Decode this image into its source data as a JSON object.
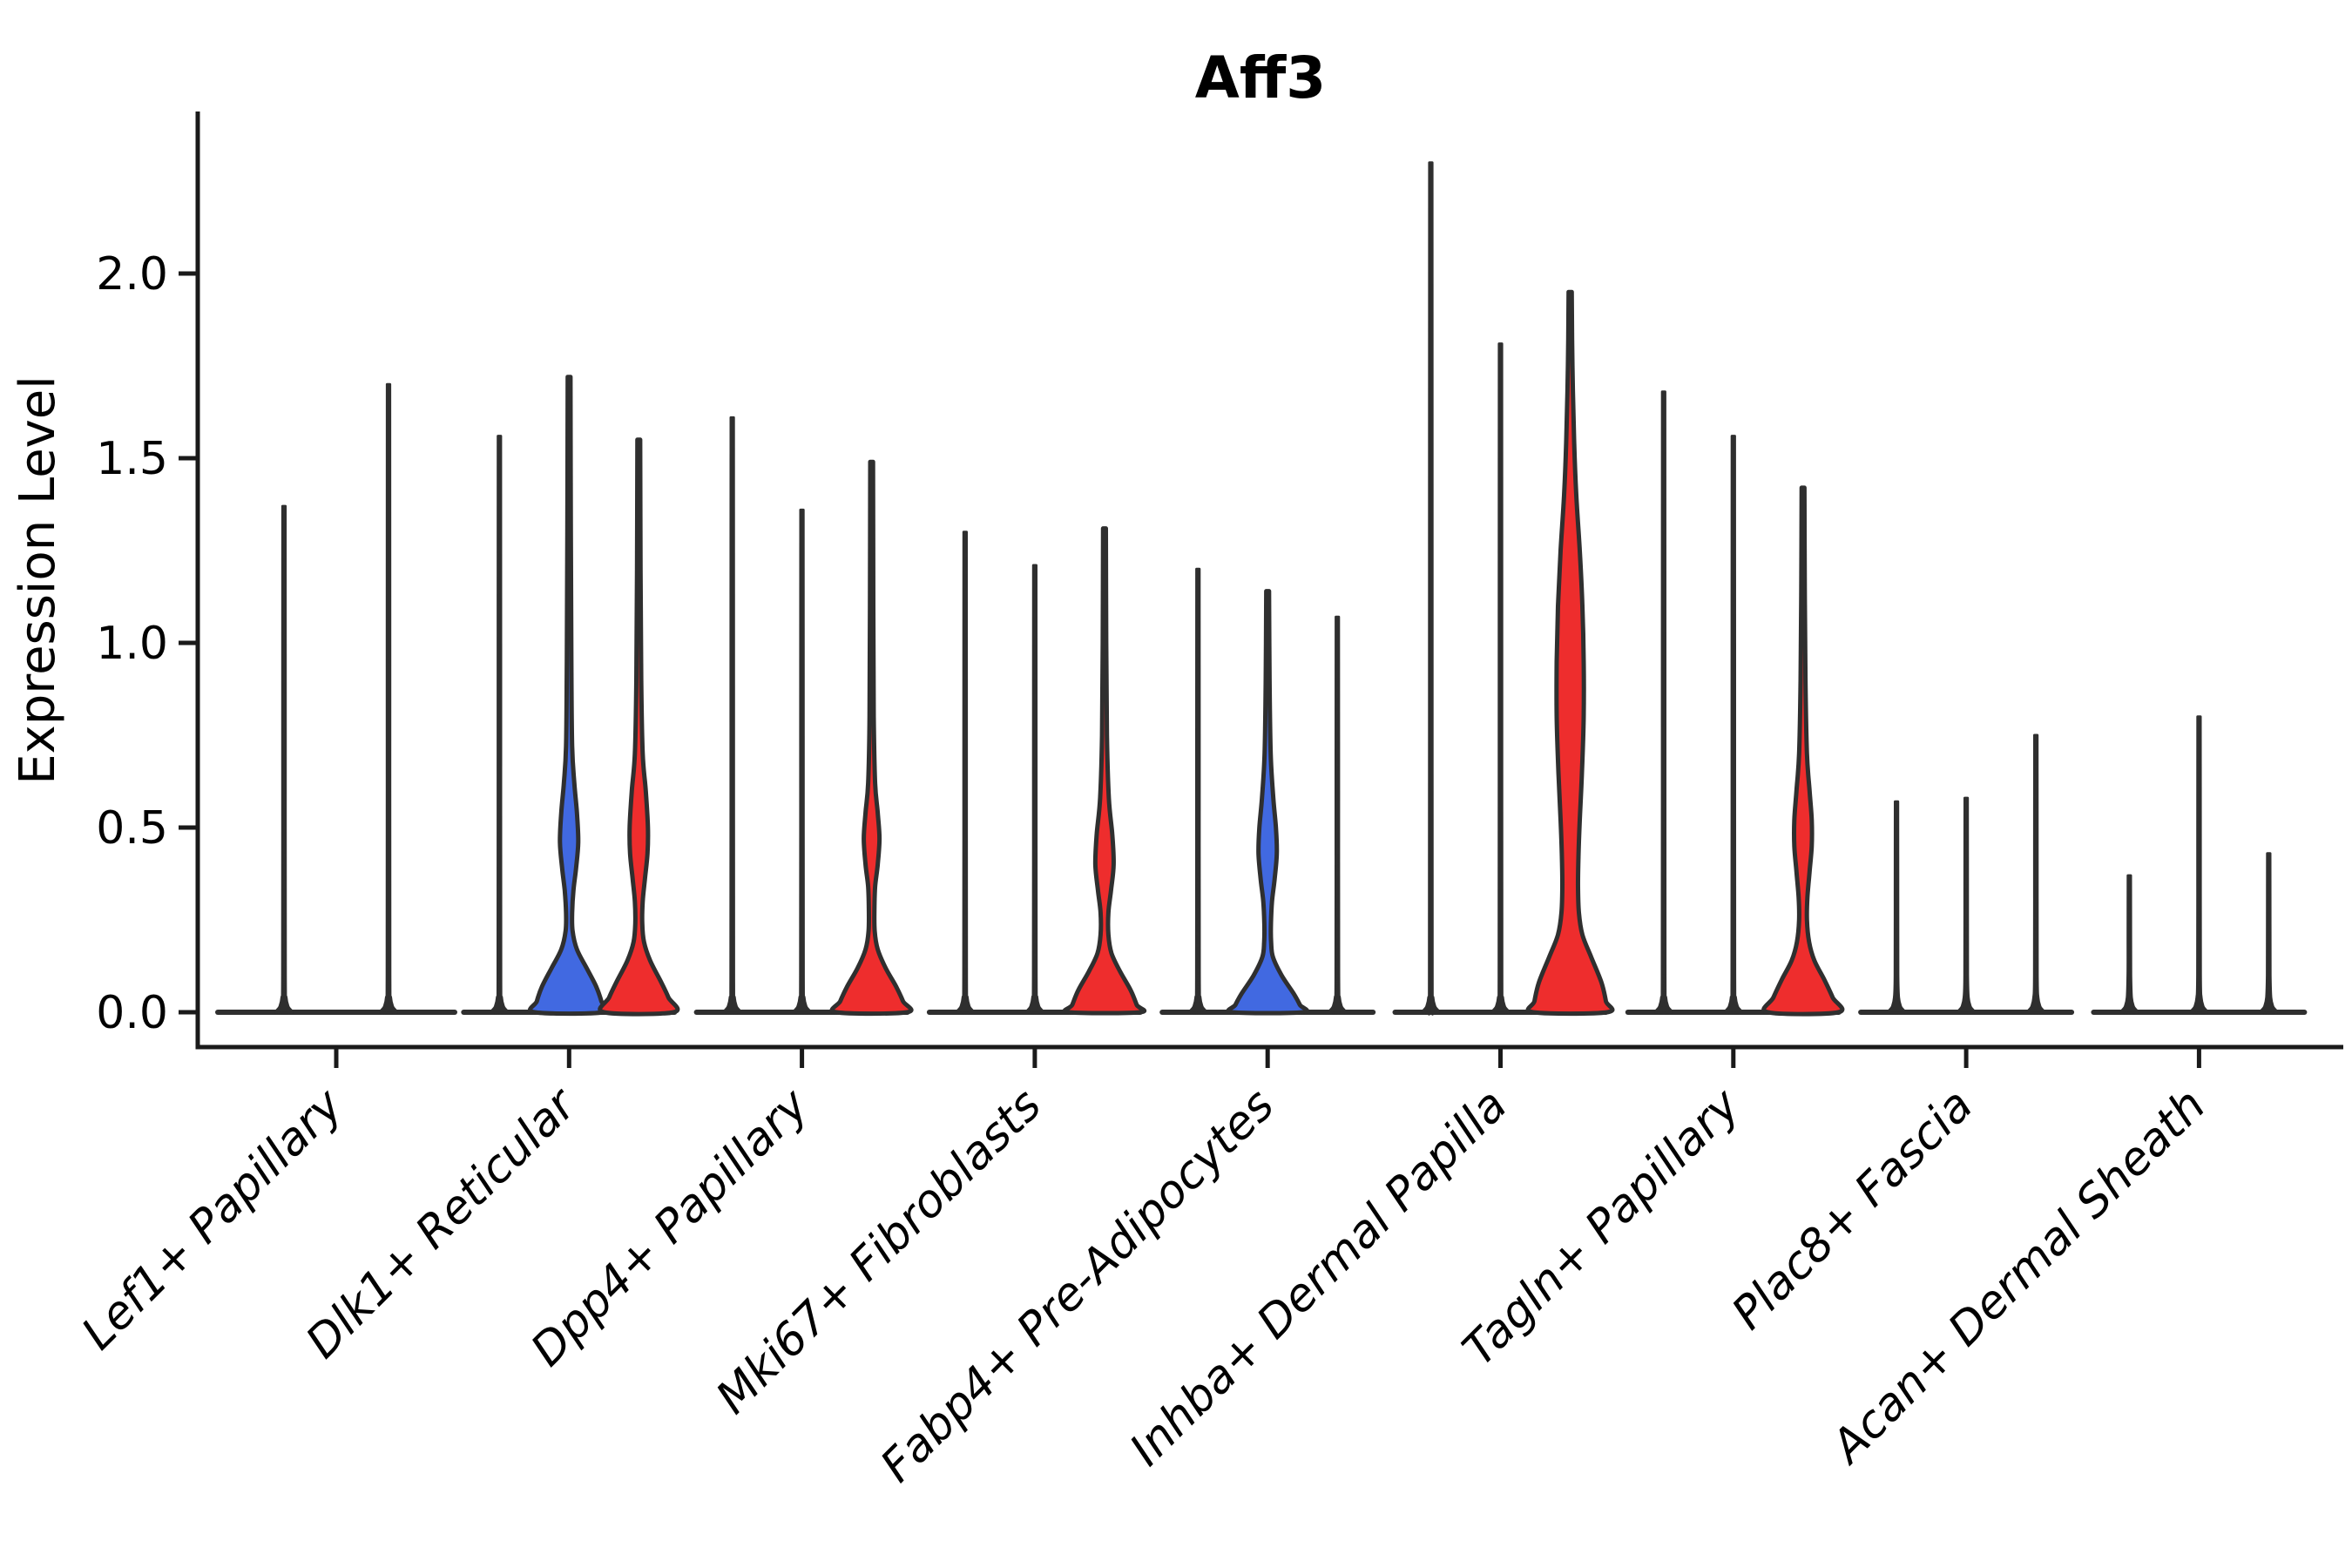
{
  "chart_data": {
    "type": "violin",
    "title": "Aff3",
    "ylabel": "Expression Level",
    "xlabel": "",
    "yticks": [
      0.0,
      0.5,
      1.0,
      1.5,
      2.0
    ],
    "ylim": [
      -0.1,
      2.44
    ],
    "grid": false,
    "legend": "none",
    "colors": {
      "dark": "#2f2f2f",
      "blue": "#4169E1",
      "red": "#EE2D2D",
      "axis": "#1a1a1a"
    },
    "categories": [
      "Lef1+ Papillary",
      "Dlk1+ Reticular",
      "Dpp4+ Papillary",
      "Mki67+ Fibroblasts",
      "Fabp4+ Pre-Adipocytes",
      "Inhba+ Dermal Papilla",
      "Tagln+ Papillary",
      "Plac8+ Fascia",
      "Acan+ Dermal Sheath"
    ],
    "series": [
      {
        "label": "Lef1+ Papillary",
        "violins": [
          {
            "kind": "spike",
            "color": "dark",
            "max": 1.37
          },
          {
            "kind": "spike",
            "color": "dark",
            "max": 1.7
          }
        ]
      },
      {
        "label": "Dlk1+ Reticular",
        "violins": [
          {
            "kind": "spike",
            "color": "dark",
            "max": 1.56
          },
          {
            "kind": "bulge",
            "color": "blue",
            "max": 1.72,
            "profile": [
              [
                1.72,
                1.6
              ],
              [
                1.3,
                2.0
              ],
              [
                0.95,
                2.6
              ],
              [
                0.72,
                3.5
              ],
              [
                0.62,
                6
              ],
              [
                0.54,
                9
              ],
              [
                0.46,
                10.5
              ],
              [
                0.39,
                8
              ],
              [
                0.33,
                5
              ],
              [
                0.27,
                3.5
              ],
              [
                0.22,
                4
              ],
              [
                0.17,
                9
              ],
              [
                0.12,
                20
              ],
              [
                0.07,
                31
              ],
              [
                0.03,
                37
              ],
              [
                0,
                39.5
              ]
            ]
          },
          {
            "kind": "bulge",
            "color": "red",
            "max": 1.55,
            "profile": [
              [
                1.55,
                1.6
              ],
              [
                1.2,
                2.0
              ],
              [
                0.9,
                2.8
              ],
              [
                0.7,
                4.5
              ],
              [
                0.6,
                8
              ],
              [
                0.5,
                10.5
              ],
              [
                0.43,
                10
              ],
              [
                0.36,
                7
              ],
              [
                0.3,
                4.5
              ],
              [
                0.24,
                4
              ],
              [
                0.19,
                6
              ],
              [
                0.14,
                13
              ],
              [
                0.08,
                26
              ],
              [
                0.04,
                34
              ],
              [
                0,
                40
              ]
            ]
          }
        ]
      },
      {
        "label": "Dpp4+ Papillary",
        "violins": [
          {
            "kind": "spike",
            "color": "dark",
            "max": 1.61
          },
          {
            "kind": "spike",
            "color": "dark",
            "max": 1.36
          },
          {
            "kind": "bulge",
            "color": "red",
            "max": 1.49,
            "profile": [
              [
                1.49,
                1.6
              ],
              [
                1.1,
                1.9
              ],
              [
                0.8,
                2.4
              ],
              [
                0.62,
                4
              ],
              [
                0.54,
                7
              ],
              [
                0.47,
                9
              ],
              [
                0.4,
                7
              ],
              [
                0.34,
                4
              ],
              [
                0.28,
                3.2
              ],
              [
                0.22,
                3.5
              ],
              [
                0.17,
                7
              ],
              [
                0.12,
                16
              ],
              [
                0.07,
                28
              ],
              [
                0.03,
                36
              ],
              [
                0,
                40.5
              ]
            ]
          }
        ]
      },
      {
        "label": "Mki67+ Fibroblasts",
        "violins": [
          {
            "kind": "spike",
            "color": "dark",
            "max": 1.3
          },
          {
            "kind": "spike",
            "color": "dark",
            "max": 1.21
          },
          {
            "kind": "bulge",
            "color": "red",
            "max": 1.31,
            "profile": [
              [
                1.31,
                1.6
              ],
              [
                1.0,
                2.0
              ],
              [
                0.75,
                2.8
              ],
              [
                0.58,
                5
              ],
              [
                0.48,
                9
              ],
              [
                0.4,
                10.5
              ],
              [
                0.33,
                7.5
              ],
              [
                0.27,
                4.5
              ],
              [
                0.21,
                4.5
              ],
              [
                0.16,
                8
              ],
              [
                0.11,
                18
              ],
              [
                0.06,
                30
              ],
              [
                0.02,
                37
              ],
              [
                0,
                40.5
              ]
            ]
          }
        ]
      },
      {
        "label": "Fabp4+ Pre-Adipocytes",
        "violins": [
          {
            "kind": "spike",
            "color": "dark",
            "max": 1.2
          },
          {
            "kind": "bulge",
            "color": "blue",
            "max": 1.14,
            "profile": [
              [
                1.14,
                1.6
              ],
              [
                0.9,
                2.2
              ],
              [
                0.7,
                3.5
              ],
              [
                0.58,
                6.5
              ],
              [
                0.5,
                9.5
              ],
              [
                0.43,
                10.5
              ],
              [
                0.36,
                8
              ],
              [
                0.3,
                5
              ],
              [
                0.24,
                3.8
              ],
              [
                0.19,
                4
              ],
              [
                0.15,
                6
              ],
              [
                0.1,
                16
              ],
              [
                0.05,
                30
              ],
              [
                0.02,
                37
              ],
              [
                0,
                40
              ]
            ]
          },
          {
            "kind": "spike",
            "color": "dark",
            "max": 1.07
          }
        ]
      },
      {
        "label": "Inhba+ Dermal Papilla",
        "violins": [
          {
            "kind": "spike",
            "color": "dark",
            "max": 2.3
          },
          {
            "kind": "spike",
            "color": "dark",
            "max": 1.81
          },
          {
            "kind": "bulge",
            "color": "red",
            "max": 1.95,
            "profile": [
              [
                1.95,
                1.8
              ],
              [
                1.75,
                2.6
              ],
              [
                1.55,
                4.5
              ],
              [
                1.4,
                7
              ],
              [
                1.25,
                11
              ],
              [
                1.1,
                14
              ],
              [
                0.95,
                15.5
              ],
              [
                0.8,
                15.5
              ],
              [
                0.65,
                13.5
              ],
              [
                0.52,
                11
              ],
              [
                0.42,
                9.5
              ],
              [
                0.34,
                9
              ],
              [
                0.27,
                10
              ],
              [
                0.21,
                14
              ],
              [
                0.15,
                24
              ],
              [
                0.08,
                36
              ],
              [
                0.03,
                41
              ],
              [
                0,
                42.5
              ]
            ]
          }
        ]
      },
      {
        "label": "Tagln+ Papillary",
        "violins": [
          {
            "kind": "spike",
            "color": "dark",
            "max": 1.68
          },
          {
            "kind": "spike",
            "color": "dark",
            "max": 1.56
          },
          {
            "kind": "bulge",
            "color": "red",
            "max": 1.42,
            "profile": [
              [
                1.42,
                1.6
              ],
              [
                1.15,
                2.0
              ],
              [
                0.9,
                2.8
              ],
              [
                0.7,
                4.5
              ],
              [
                0.6,
                7.5
              ],
              [
                0.52,
                10
              ],
              [
                0.45,
                10
              ],
              [
                0.38,
                7.5
              ],
              [
                0.31,
                5
              ],
              [
                0.25,
                4.5
              ],
              [
                0.19,
                7
              ],
              [
                0.14,
                13
              ],
              [
                0.09,
                24
              ],
              [
                0.04,
                34
              ],
              [
                0,
                40.5
              ]
            ]
          }
        ]
      },
      {
        "label": "Plac8+ Fascia",
        "violins": [
          {
            "kind": "spike",
            "color": "dark",
            "max": 0.57
          },
          {
            "kind": "spike",
            "color": "dark",
            "max": 0.58
          },
          {
            "kind": "spike",
            "color": "dark",
            "max": 0.75
          }
        ]
      },
      {
        "label": "Acan+ Dermal Sheath",
        "violins": [
          {
            "kind": "spike",
            "color": "dark",
            "max": 0.37
          },
          {
            "kind": "spike",
            "color": "dark",
            "max": 0.8
          },
          {
            "kind": "spike",
            "color": "dark",
            "max": 0.43
          }
        ]
      }
    ]
  }
}
